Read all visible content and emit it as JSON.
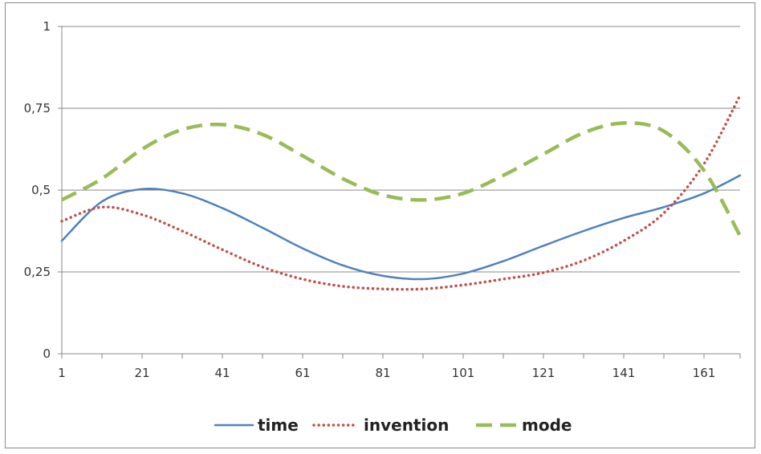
{
  "chart_data": {
    "type": "line",
    "x": [
      1,
      11,
      21,
      31,
      41,
      51,
      61,
      71,
      81,
      91,
      101,
      111,
      121,
      131,
      141,
      151,
      161,
      170
    ],
    "series": [
      {
        "name": "time",
        "color": "#4F81BD",
        "style": "solid",
        "values": [
          0.345,
          0.465,
          0.503,
          0.49,
          0.445,
          0.385,
          0.322,
          0.27,
          0.238,
          0.228,
          0.245,
          0.283,
          0.33,
          0.375,
          0.415,
          0.448,
          0.49,
          0.545
        ]
      },
      {
        "name": "invention",
        "color": "#C0504D",
        "style": "dotted",
        "values": [
          0.405,
          0.448,
          0.425,
          0.375,
          0.318,
          0.265,
          0.228,
          0.206,
          0.198,
          0.198,
          0.21,
          0.228,
          0.248,
          0.285,
          0.345,
          0.43,
          0.58,
          0.79
        ]
      },
      {
        "name": "mode",
        "color": "#9BBB59",
        "style": "dashed",
        "values": [
          0.47,
          0.535,
          0.625,
          0.685,
          0.7,
          0.67,
          0.605,
          0.535,
          0.485,
          0.47,
          0.49,
          0.545,
          0.61,
          0.675,
          0.705,
          0.68,
          0.56,
          0.36
        ]
      }
    ],
    "x_ticks": [
      "1",
      "21",
      "41",
      "61",
      "81",
      "101",
      "121",
      "141",
      "161"
    ],
    "x_tick_values": [
      1,
      21,
      41,
      61,
      81,
      101,
      121,
      141,
      161
    ],
    "y_ticks": [
      "0",
      "0,25",
      "0,5",
      "0,75",
      "1"
    ],
    "y_tick_values": [
      0,
      0.25,
      0.5,
      0.75,
      1
    ],
    "ylim": [
      0,
      1
    ],
    "xlim": [
      1,
      170
    ],
    "grid": "horizontal",
    "legend_position": "bottom",
    "title": "",
    "xlabel": "",
    "ylabel": ""
  }
}
